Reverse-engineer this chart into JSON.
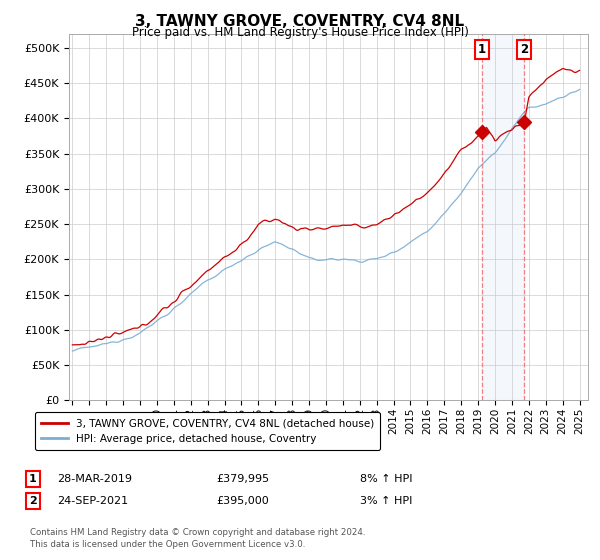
{
  "title": "3, TAWNY GROVE, COVENTRY, CV4 8NL",
  "subtitle": "Price paid vs. HM Land Registry's House Price Index (HPI)",
  "ylabel_ticks": [
    "£0",
    "£50K",
    "£100K",
    "£150K",
    "£200K",
    "£250K",
    "£300K",
    "£350K",
    "£400K",
    "£450K",
    "£500K"
  ],
  "ytick_values": [
    0,
    50000,
    100000,
    150000,
    200000,
    250000,
    300000,
    350000,
    400000,
    450000,
    500000
  ],
  "ylim": [
    0,
    520000
  ],
  "xlim_start": 1994.8,
  "xlim_end": 2025.5,
  "xtick_years": [
    1995,
    1996,
    1997,
    1998,
    1999,
    2000,
    2001,
    2002,
    2003,
    2004,
    2005,
    2006,
    2007,
    2008,
    2009,
    2010,
    2011,
    2012,
    2013,
    2014,
    2015,
    2016,
    2017,
    2018,
    2019,
    2020,
    2021,
    2022,
    2023,
    2024,
    2025
  ],
  "hpi_color": "#7aadd4",
  "price_color": "#cc0000",
  "marker_color": "#cc0000",
  "sale1_x": 2019.22,
  "sale1_y": 379995,
  "sale1_label": "1",
  "sale1_date": "28-MAR-2019",
  "sale1_price": "£379,995",
  "sale1_hpi": "8% ↑ HPI",
  "sale2_x": 2021.72,
  "sale2_y": 395000,
  "sale2_label": "2",
  "sale2_date": "24-SEP-2021",
  "sale2_price": "£395,000",
  "sale2_hpi": "3% ↑ HPI",
  "legend_line1": "3, TAWNY GROVE, COVENTRY, CV4 8NL (detached house)",
  "legend_line2": "HPI: Average price, detached house, Coventry",
  "footnote": "Contains HM Land Registry data © Crown copyright and database right 2024.\nThis data is licensed under the Open Government Licence v3.0.",
  "bg_color": "#ffffff",
  "grid_color": "#cccccc",
  "highlight_bg": "#ddeeff"
}
